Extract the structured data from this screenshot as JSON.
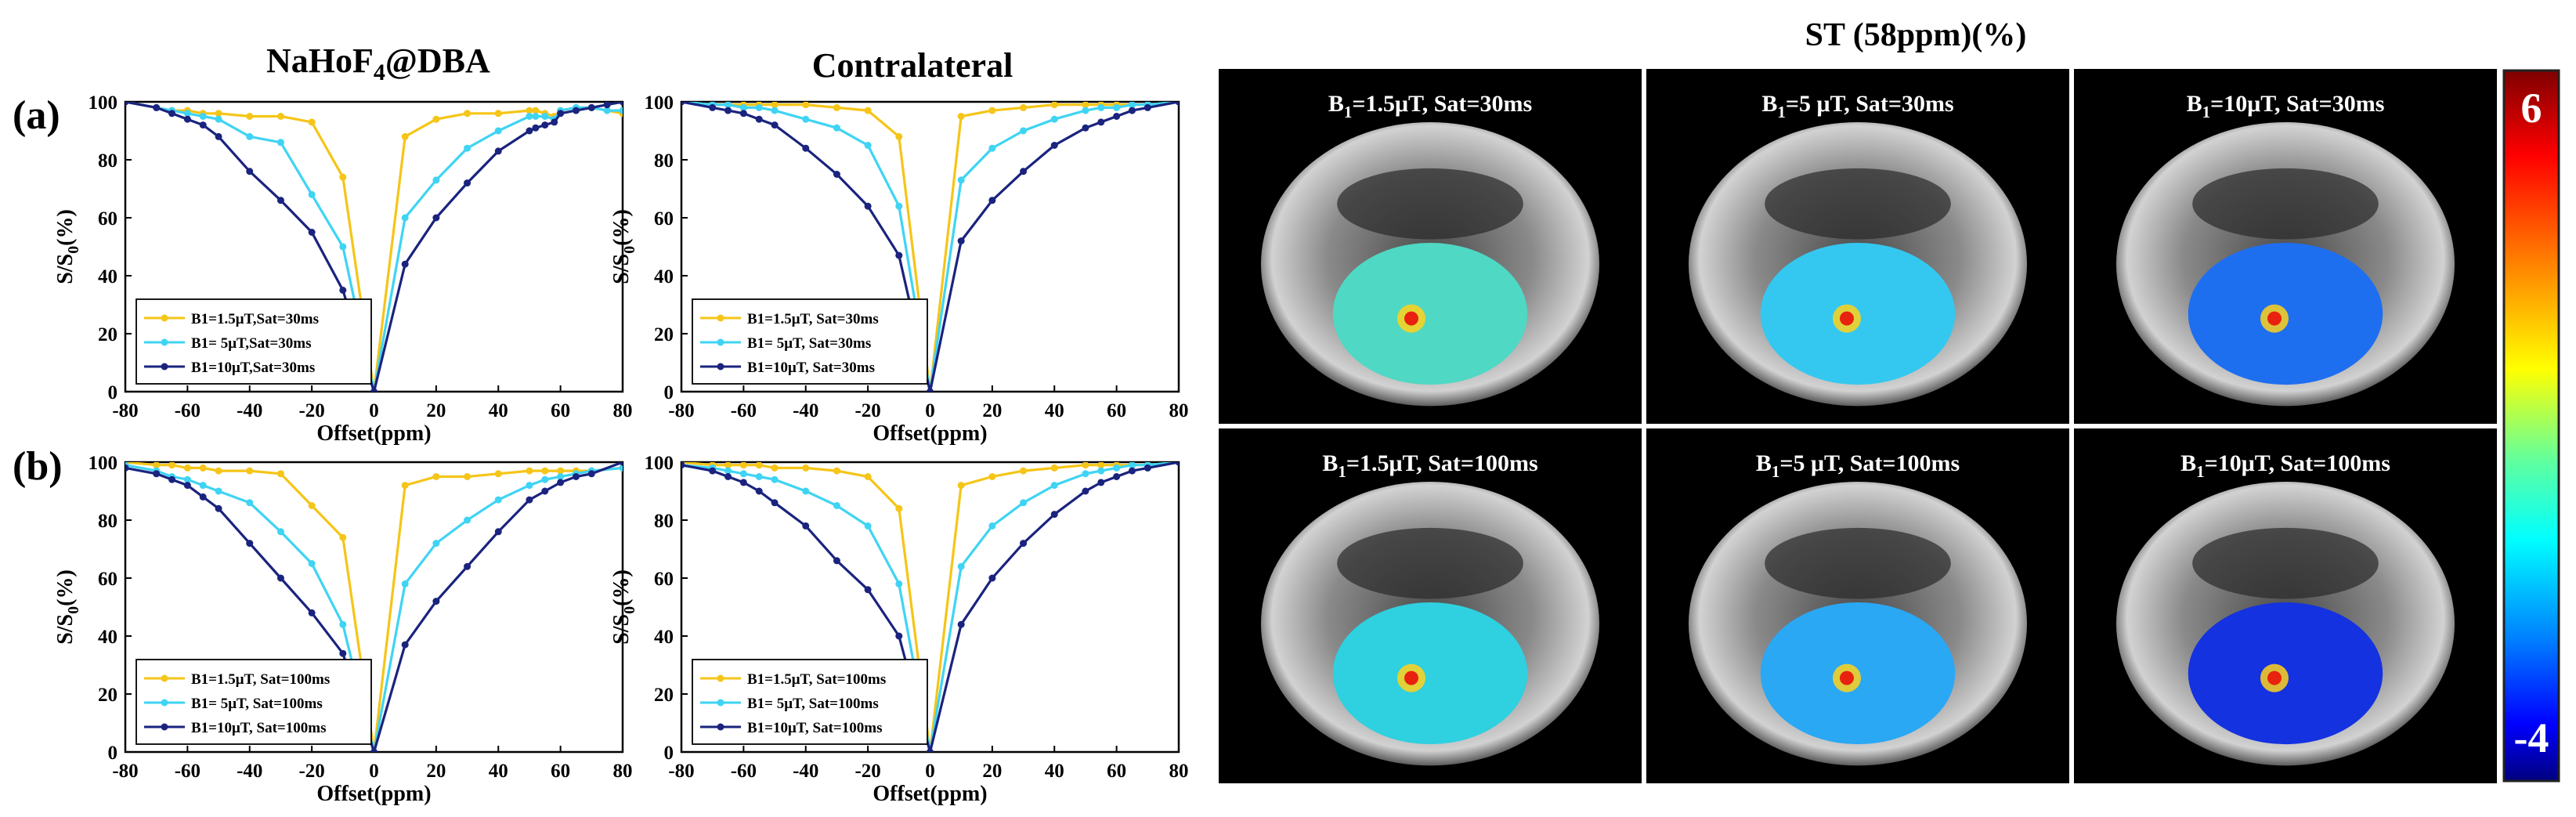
{
  "headers": {
    "nahof4_main": "NaHoF",
    "nahof4_sub": "4",
    "nahof4_tail": "@DBA",
    "contralateral": "Contralateral",
    "st_title": "ST (58ppm)(%)"
  },
  "row_labels": [
    "(a)",
    "(b)"
  ],
  "axis": {
    "xlabel": "Offset(ppm)",
    "ylabel_main": "S/S",
    "ylabel_sub": "0",
    "ylabel_tail": "(%)",
    "xticks": [
      "-80",
      "-60",
      "-40",
      "-20",
      "0",
      "20",
      "40",
      "60",
      "80"
    ],
    "yticks": [
      "0",
      "20",
      "40",
      "60",
      "80",
      "100"
    ]
  },
  "colors": {
    "low": "#f5c518",
    "mid": "#3fd4f4",
    "high": "#1a237e"
  },
  "colorbar": {
    "max_label": "6",
    "min_label": "-4"
  },
  "map_titles": [
    {
      "prefix": "B",
      "sub": "1",
      "rest": "=1.5μT, Sat=30ms"
    },
    {
      "prefix": "B",
      "sub": "1",
      "rest": "=5 μT, Sat=30ms"
    },
    {
      "prefix": "B",
      "sub": "1",
      "rest": "=10μT, Sat=30ms"
    },
    {
      "prefix": "B",
      "sub": "1",
      "rest": "=1.5μT, Sat=100ms"
    },
    {
      "prefix": "B",
      "sub": "1",
      "rest": "=5 μT, Sat=100ms"
    },
    {
      "prefix": "B",
      "sub": "1",
      "rest": "=10μT, Sat=100ms"
    }
  ],
  "map_fill": [
    "#4fd8c4",
    "#34c8f0",
    "#1e6ef0",
    "#2fd0e0",
    "#2aa8f4",
    "#1432e0"
  ],
  "chart_data": [
    {
      "type": "line",
      "panel": "(a) NaHoF4@DBA",
      "xlabel": "Offset(ppm)",
      "ylabel": "S/S0(%)",
      "xlim": [
        -80,
        80
      ],
      "ylim": [
        0,
        100
      ],
      "x": [
        -80,
        -70,
        -65,
        -60,
        -55,
        -50,
        -40,
        -30,
        -20,
        -10,
        0,
        10,
        20,
        30,
        40,
        50,
        52,
        55,
        58,
        60,
        65,
        70,
        75,
        80
      ],
      "series": [
        {
          "name": "B1=1.5μT,Sat=30ms",
          "values": [
            100,
            98,
            97,
            97,
            96,
            96,
            95,
            95,
            93,
            74,
            0,
            88,
            94,
            96,
            96,
            97,
            97,
            96,
            95,
            97,
            98,
            98,
            97,
            96
          ]
        },
        {
          "name": "B1= 5μT,Sat=30ms",
          "values": [
            100,
            98,
            97,
            96,
            95,
            94,
            88,
            86,
            68,
            50,
            0,
            60,
            73,
            84,
            90,
            95,
            95,
            95,
            94,
            97,
            98,
            98,
            97,
            97
          ]
        },
        {
          "name": "B1=10μT,Sat=30ms",
          "values": [
            100,
            98,
            96,
            94,
            92,
            88,
            76,
            66,
            55,
            35,
            0,
            44,
            60,
            72,
            83,
            90,
            91,
            92,
            93,
            96,
            97,
            98,
            99,
            100
          ]
        }
      ]
    },
    {
      "type": "line",
      "panel": "(a) Contralateral",
      "xlabel": "Offset(ppm)",
      "ylabel": "S/S0(%)",
      "xlim": [
        -80,
        80
      ],
      "ylim": [
        0,
        100
      ],
      "x": [
        -80,
        -70,
        -65,
        -60,
        -55,
        -50,
        -40,
        -30,
        -20,
        -10,
        0,
        10,
        20,
        30,
        40,
        50,
        55,
        60,
        65,
        70,
        80
      ],
      "series": [
        {
          "name": "B1=1.5μT, Sat=30ms",
          "values": [
            100,
            99,
            99,
            99,
            99,
            99,
            99,
            98,
            97,
            88,
            0,
            95,
            97,
            98,
            99,
            99,
            99,
            99,
            99,
            99,
            100
          ]
        },
        {
          "name": "B1= 5μT, Sat=30ms",
          "values": [
            100,
            99,
            99,
            98,
            98,
            97,
            94,
            91,
            85,
            64,
            0,
            73,
            84,
            90,
            94,
            97,
            98,
            98,
            99,
            99,
            100
          ]
        },
        {
          "name": "B1=10μT, Sat=30ms",
          "values": [
            100,
            98,
            97,
            96,
            94,
            92,
            84,
            75,
            64,
            47,
            0,
            52,
            66,
            76,
            85,
            91,
            93,
            95,
            97,
            98,
            100
          ]
        }
      ]
    },
    {
      "type": "line",
      "panel": "(b) NaHoF4@DBA",
      "xlabel": "Offset(ppm)",
      "ylabel": "S/S0(%)",
      "xlim": [
        -80,
        80
      ],
      "ylim": [
        0,
        100
      ],
      "x": [
        -80,
        -70,
        -65,
        -60,
        -55,
        -50,
        -40,
        -30,
        -20,
        -10,
        0,
        10,
        20,
        30,
        40,
        50,
        55,
        60,
        65,
        70,
        80
      ],
      "series": [
        {
          "name": "B1=1.5μT, Sat=100ms",
          "values": [
            100,
            99,
            99,
            98,
            98,
            97,
            97,
            96,
            85,
            74,
            0,
            92,
            95,
            95,
            96,
            97,
            97,
            97,
            97,
            97,
            98
          ]
        },
        {
          "name": "B1= 5μT, Sat=100ms",
          "values": [
            99,
            97,
            95,
            94,
            92,
            90,
            86,
            76,
            65,
            44,
            0,
            58,
            72,
            80,
            87,
            92,
            94,
            95,
            96,
            97,
            98
          ]
        },
        {
          "name": "B1=10μT, Sat=100ms",
          "values": [
            98,
            96,
            94,
            92,
            88,
            84,
            72,
            60,
            48,
            34,
            0,
            37,
            52,
            64,
            76,
            87,
            90,
            93,
            95,
            96,
            100
          ]
        }
      ]
    },
    {
      "type": "line",
      "panel": "(b) Contralateral",
      "xlabel": "Offset(ppm)",
      "ylabel": "S/S0(%)",
      "xlim": [
        -80,
        80
      ],
      "ylim": [
        0,
        100
      ],
      "x": [
        -80,
        -70,
        -65,
        -60,
        -55,
        -50,
        -40,
        -30,
        -20,
        -10,
        0,
        10,
        20,
        30,
        40,
        50,
        55,
        60,
        65,
        70,
        80
      ],
      "series": [
        {
          "name": "B1=1.5μT, Sat=100ms",
          "values": [
            100,
            99,
            99,
            99,
            99,
            98,
            98,
            97,
            95,
            84,
            0,
            92,
            95,
            97,
            98,
            99,
            99,
            99,
            99,
            99,
            100
          ]
        },
        {
          "name": "B1= 5μT, Sat=100ms",
          "values": [
            99,
            98,
            97,
            96,
            95,
            94,
            90,
            85,
            78,
            58,
            0,
            64,
            78,
            86,
            92,
            96,
            97,
            98,
            99,
            99,
            100
          ]
        },
        {
          "name": "B1=10μT, Sat=100ms",
          "values": [
            99,
            97,
            95,
            93,
            90,
            86,
            78,
            66,
            56,
            40,
            0,
            44,
            60,
            72,
            82,
            90,
            93,
            95,
            97,
            98,
            100
          ]
        }
      ]
    }
  ]
}
